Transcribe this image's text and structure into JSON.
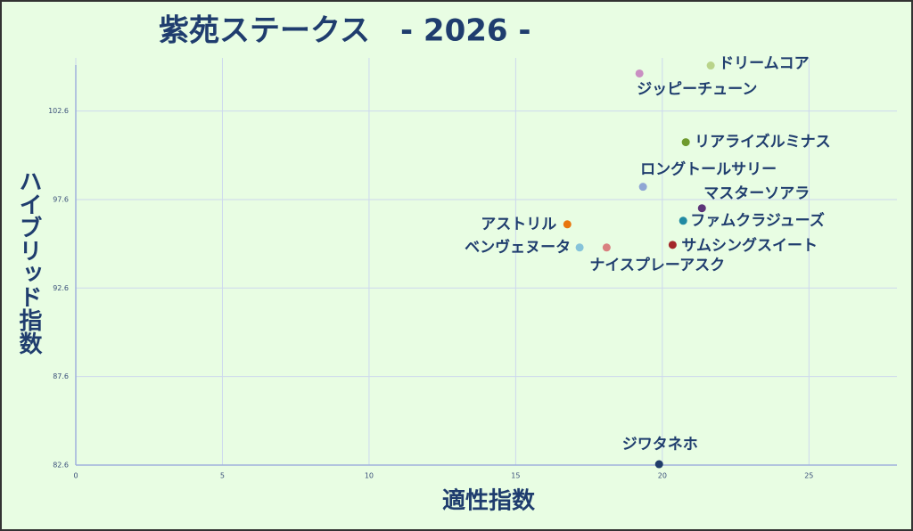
{
  "chart_data": {
    "type": "scatter",
    "title": "紫苑ステークス　- 2026 -",
    "x_label": "適性指数",
    "y_label": "ハイブリッド指数",
    "xlim": [
      0,
      28
    ],
    "xticks": [
      0,
      5,
      10,
      15,
      20,
      25
    ],
    "ylim": [
      82.6,
      105.6
    ],
    "yticks": [
      82.6,
      87.6,
      92.6,
      97.6,
      102.6
    ],
    "grid": true,
    "series": [
      {
        "name": "ドリームコア",
        "color": "#b9d48a",
        "x": [
          21.65
        ],
        "values": [
          105.17
        ]
      },
      {
        "name": "ジッピーチューン",
        "color": "#c98fc2",
        "x": [
          19.22
        ],
        "values": [
          104.72
        ]
      },
      {
        "name": "リアライズルミナス",
        "color": "#6f9a2e",
        "x": [
          20.8
        ],
        "values": [
          100.84
        ]
      },
      {
        "name": "ロングトールサリー",
        "color": "#8fa6d4",
        "x": [
          19.34
        ],
        "values": [
          98.32
        ]
      },
      {
        "name": "マスターソアラ",
        "color": "#5c3578",
        "x": [
          21.35
        ],
        "values": [
          97.11
        ]
      },
      {
        "name": "アストリル",
        "color": "#e8750e",
        "x": [
          16.76
        ],
        "values": [
          96.2
        ]
      },
      {
        "name": "ファムクラジューズ",
        "color": "#218aa3",
        "x": [
          20.71
        ],
        "values": [
          96.4
        ]
      },
      {
        "name": "サムシングスイート",
        "color": "#a3262a",
        "x": [
          20.35
        ],
        "values": [
          95.04
        ]
      },
      {
        "name": "ベンヴェヌータ",
        "color": "#86c3d9",
        "x": [
          17.18
        ],
        "values": [
          94.89
        ]
      },
      {
        "name": "ナイスプレーアスク",
        "color": "#d98080",
        "x": [
          18.1
        ],
        "values": [
          94.89
        ]
      },
      {
        "name": "ジワタネホ",
        "color": "#203c6a",
        "x": [
          19.89
        ],
        "values": [
          82.65
        ]
      }
    ]
  }
}
